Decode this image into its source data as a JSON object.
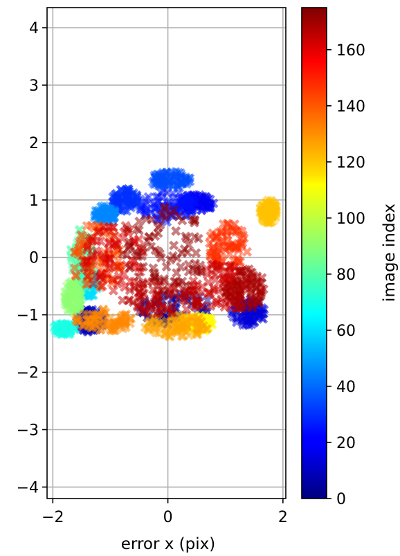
{
  "chart_data": {
    "type": "scatter",
    "marker": "x-filled",
    "marker_alpha": 0.5,
    "xlabel": "error x (pix)",
    "ylabel": "",
    "xlim": [
      -2.1,
      2.05
    ],
    "ylim": [
      -4.2,
      4.35
    ],
    "xticks": [
      -2,
      0,
      2
    ],
    "yticks": [
      -4,
      -3,
      -2,
      -1,
      0,
      1,
      2,
      3,
      4
    ],
    "grid": true,
    "colorbar": {
      "label": "image index",
      "colormap": "jet",
      "range": [
        0,
        175
      ],
      "ticks": [
        0,
        20,
        40,
        60,
        80,
        100,
        120,
        140,
        160
      ]
    },
    "clusters": [
      {
        "image_index": 5,
        "x_range": [
          -0.5,
          0.8
        ],
        "y_range": [
          -1.2,
          -0.6
        ]
      },
      {
        "image_index": 10,
        "x_range": [
          -1.6,
          -1.1
        ],
        "y_range": [
          -1.3,
          -0.9
        ]
      },
      {
        "image_index": 15,
        "x_range": [
          1.1,
          1.7
        ],
        "y_range": [
          -1.2,
          -0.7
        ]
      },
      {
        "image_index": 20,
        "x_range": [
          0.2,
          0.8
        ],
        "y_range": [
          0.8,
          1.1
        ]
      },
      {
        "image_index": 25,
        "x_range": [
          -0.5,
          0.5
        ],
        "y_range": [
          0.6,
          1.2
        ]
      },
      {
        "image_index": 30,
        "x_range": [
          -1.0,
          -0.5
        ],
        "y_range": [
          0.8,
          1.2
        ]
      },
      {
        "image_index": 35,
        "x_range": [
          -0.3,
          0.4
        ],
        "y_range": [
          1.2,
          1.5
        ]
      },
      {
        "image_index": 45,
        "x_range": [
          -1.3,
          -0.9
        ],
        "y_range": [
          0.6,
          0.9
        ]
      },
      {
        "image_index": 60,
        "x_range": [
          -1.6,
          -1.2
        ],
        "y_range": [
          -0.7,
          -0.2
        ]
      },
      {
        "image_index": 70,
        "x_range": [
          -2.0,
          -1.6
        ],
        "y_range": [
          -1.35,
          -1.15
        ]
      },
      {
        "image_index": 80,
        "x_range": [
          -1.7,
          -1.3
        ],
        "y_range": [
          -0.6,
          0.5
        ]
      },
      {
        "image_index": 90,
        "x_range": [
          -1.8,
          -1.5
        ],
        "y_range": [
          -1.0,
          -0.4
        ]
      },
      {
        "image_index": 110,
        "x_range": [
          0.2,
          0.8
        ],
        "y_range": [
          -1.3,
          -1.0
        ]
      },
      {
        "image_index": 120,
        "x_range": [
          1.6,
          1.9
        ],
        "y_range": [
          0.6,
          1.0
        ]
      },
      {
        "image_index": 125,
        "x_range": [
          -0.4,
          0.7
        ],
        "y_range": [
          -1.4,
          -1.0
        ]
      },
      {
        "image_index": 130,
        "x_range": [
          -1.6,
          -0.6
        ],
        "y_range": [
          -1.3,
          -0.9
        ]
      },
      {
        "image_index": 140,
        "x_range": [
          -1.7,
          -0.8
        ],
        "y_range": [
          -0.6,
          0.6
        ]
      },
      {
        "image_index": 145,
        "x_range": [
          0.7,
          1.4
        ],
        "y_range": [
          -0.2,
          0.6
        ]
      },
      {
        "image_index": 160,
        "x_range": [
          -1.5,
          -0.4
        ],
        "y_range": [
          -0.6,
          0.6
        ]
      },
      {
        "image_index": 162,
        "x_range": [
          0.4,
          1.4
        ],
        "y_range": [
          -1.0,
          -0.1
        ]
      },
      {
        "image_index": 165,
        "x_range": [
          -0.8,
          0.6
        ],
        "y_range": [
          -1.0,
          -0.4
        ]
      },
      {
        "image_index": 168,
        "x_range": [
          1.0,
          1.7
        ],
        "y_range": [
          -0.9,
          -0.2
        ]
      },
      {
        "image_index": 172,
        "x_range": [
          -0.8,
          0.7
        ],
        "y_range": [
          -0.6,
          0.9
        ]
      }
    ]
  }
}
